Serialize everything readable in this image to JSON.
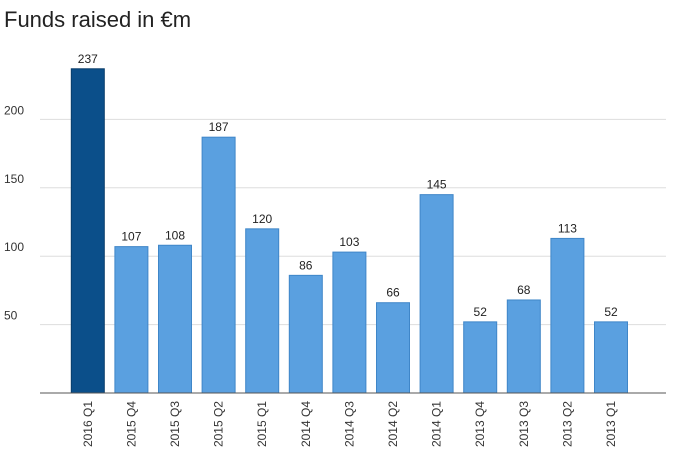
{
  "chart_data": {
    "type": "bar",
    "title": "Funds raised in €m",
    "xlabel": "",
    "ylabel": "",
    "ylim": [
      0,
      250
    ],
    "y_ticks": [
      50,
      100,
      150,
      200
    ],
    "grid": true,
    "legend": "none",
    "categories": [
      "2016 Q1",
      "2015 Q4",
      "2015 Q3",
      "2015 Q2",
      "2015 Q1",
      "2014 Q4",
      "2014 Q3",
      "2014 Q2",
      "2014 Q1",
      "2013 Q4",
      "2013 Q3",
      "2013 Q2",
      "2013 Q1"
    ],
    "values": [
      237,
      107,
      108,
      187,
      120,
      86,
      103,
      66,
      145,
      52,
      68,
      113,
      52
    ],
    "highlight_index": 0,
    "colors": {
      "bar": "#5aa0e0",
      "bar_stroke": "#3f86c8",
      "highlight": "#0b4f8a",
      "highlight_stroke": "#083c6a"
    }
  }
}
